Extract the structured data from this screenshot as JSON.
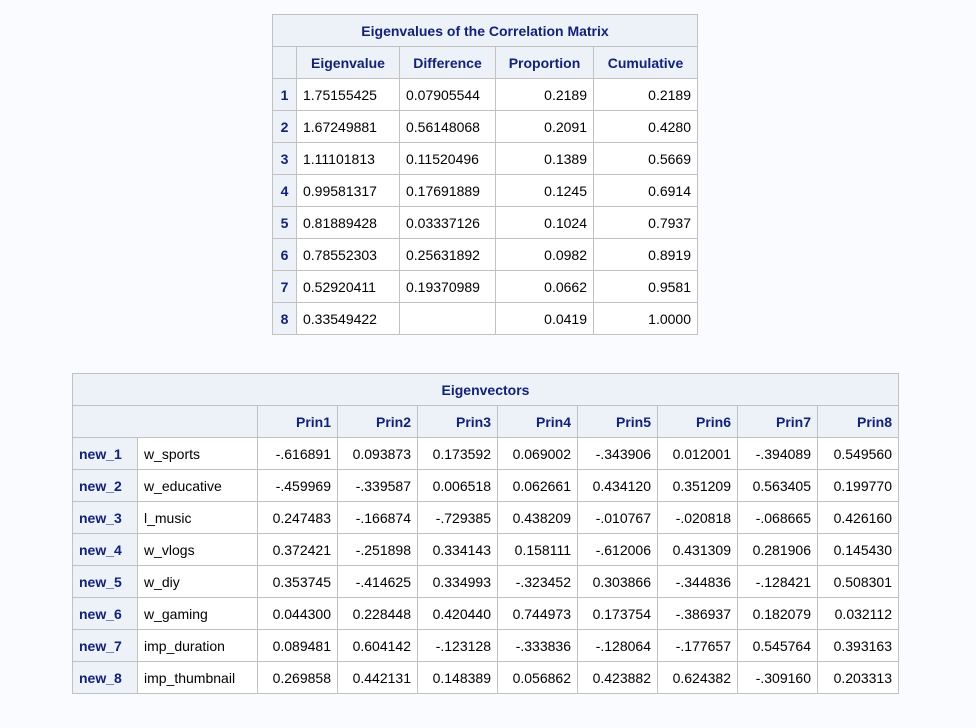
{
  "eigenvalues": {
    "title": "Eigenvalues of the Correlation Matrix",
    "headers": [
      "Eigenvalue",
      "Difference",
      "Proportion",
      "Cumulative"
    ],
    "rows": [
      {
        "n": "1",
        "eigenvalue": "1.75155425",
        "difference": "0.07905544",
        "proportion": "0.2189",
        "cumulative": "0.2189"
      },
      {
        "n": "2",
        "eigenvalue": "1.67249881",
        "difference": "0.56148068",
        "proportion": "0.2091",
        "cumulative": "0.4280"
      },
      {
        "n": "3",
        "eigenvalue": "1.11101813",
        "difference": "0.11520496",
        "proportion": "0.1389",
        "cumulative": "0.5669"
      },
      {
        "n": "4",
        "eigenvalue": "0.99581317",
        "difference": "0.17691889",
        "proportion": "0.1245",
        "cumulative": "0.6914"
      },
      {
        "n": "5",
        "eigenvalue": "0.81889428",
        "difference": "0.03337126",
        "proportion": "0.1024",
        "cumulative": "0.7937"
      },
      {
        "n": "6",
        "eigenvalue": "0.78552303",
        "difference": "0.25631892",
        "proportion": "0.0982",
        "cumulative": "0.8919"
      },
      {
        "n": "7",
        "eigenvalue": "0.52920411",
        "difference": "0.19370989",
        "proportion": "0.0662",
        "cumulative": "0.9581"
      },
      {
        "n": "8",
        "eigenvalue": "0.33549422",
        "difference": "",
        "proportion": "0.0419",
        "cumulative": "1.0000"
      }
    ]
  },
  "eigenvectors": {
    "title": "Eigenvectors",
    "headers": [
      "Prin1",
      "Prin2",
      "Prin3",
      "Prin4",
      "Prin5",
      "Prin6",
      "Prin7",
      "Prin8"
    ],
    "rows": [
      {
        "id": "new_1",
        "label": "w_sports",
        "values": [
          "-.616891",
          "0.093873",
          "0.173592",
          "0.069002",
          "-.343906",
          "0.012001",
          "-.394089",
          "0.549560"
        ]
      },
      {
        "id": "new_2",
        "label": "w_educative",
        "values": [
          "-.459969",
          "-.339587",
          "0.006518",
          "0.062661",
          "0.434120",
          "0.351209",
          "0.563405",
          "0.199770"
        ]
      },
      {
        "id": "new_3",
        "label": "l_music",
        "values": [
          "0.247483",
          "-.166874",
          "-.729385",
          "0.438209",
          "-.010767",
          "-.020818",
          "-.068665",
          "0.426160"
        ]
      },
      {
        "id": "new_4",
        "label": "w_vlogs",
        "values": [
          "0.372421",
          "-.251898",
          "0.334143",
          "0.158111",
          "-.612006",
          "0.431309",
          "0.281906",
          "0.145430"
        ]
      },
      {
        "id": "new_5",
        "label": "w_diy",
        "values": [
          "0.353745",
          "-.414625",
          "0.334993",
          "-.323452",
          "0.303866",
          "-.344836",
          "-.128421",
          "0.508301"
        ]
      },
      {
        "id": "new_6",
        "label": "w_gaming",
        "values": [
          "0.044300",
          "0.228448",
          "0.420440",
          "0.744973",
          "0.173754",
          "-.386937",
          "0.182079",
          "0.032112"
        ]
      },
      {
        "id": "new_7",
        "label": "imp_duration",
        "values": [
          "0.089481",
          "0.604142",
          "-.123128",
          "-.333836",
          "-.128064",
          "-.177657",
          "0.545764",
          "0.393163"
        ]
      },
      {
        "id": "new_8",
        "label": "imp_thumbnail",
        "values": [
          "0.269858",
          "0.442131",
          "0.148389",
          "0.056862",
          "0.423882",
          "0.624382",
          "-.309160",
          "0.203313"
        ]
      }
    ]
  }
}
